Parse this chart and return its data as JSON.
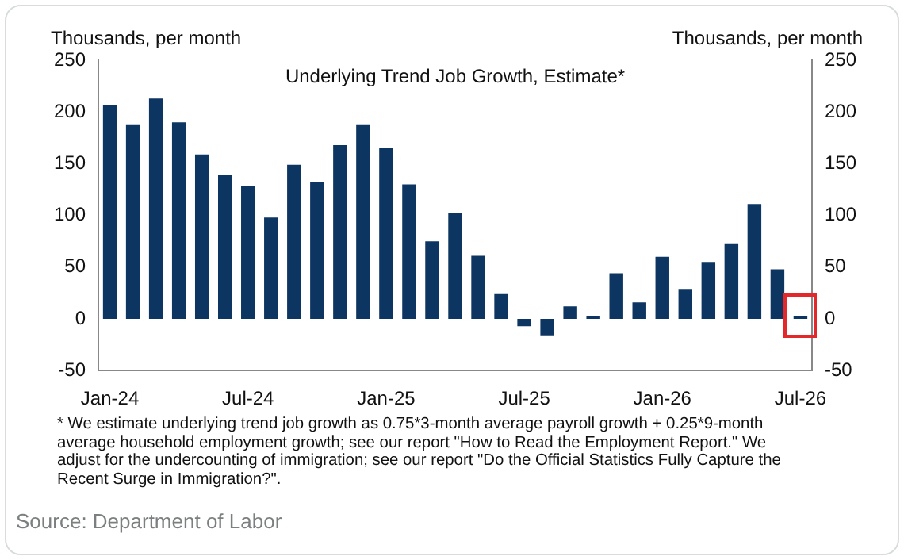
{
  "chart_data": {
    "type": "bar",
    "title": "Underlying Trend Job Growth, Estimate*",
    "ylabel": "Thousands, per month",
    "y2label": "Thousands, per month",
    "categories": [
      "Jan-24",
      null,
      null,
      null,
      null,
      null,
      "Jul-24",
      null,
      null,
      null,
      null,
      null,
      "Jan-25",
      null,
      null,
      null,
      null,
      null,
      "Jul-25",
      null,
      null,
      null,
      null,
      null,
      "Jan-26",
      null,
      null,
      null,
      null,
      null,
      "Jul-26"
    ],
    "series": [
      {
        "color": "#0c3561",
        "values": [
          207,
          188,
          213,
          190,
          159,
          139,
          128,
          98,
          149,
          132,
          168,
          188,
          165,
          130,
          75,
          102,
          61,
          24,
          -7,
          -16,
          12,
          3,
          44,
          16,
          60,
          29,
          55,
          73,
          111,
          48,
          3
        ]
      }
    ],
    "ylim": [
      -50,
      250
    ],
    "yticks": [
      -50,
      0,
      50,
      100,
      150,
      200,
      250
    ],
    "y2lim": [
      -50,
      250
    ],
    "y2ticks": [
      -50,
      0,
      50,
      100,
      150,
      200,
      250
    ],
    "grid": false,
    "annotations": [
      "* We estimate underlying trend job growth as 0.75*3-month average payroll growth + 0.25*9-month average household employment growth; see our report \"How to Read the Employment Report.\" We adjust for the undercounting of immigration; see our report \"Do the Official Statistics Fully Capture the Recent Surge in Immigration?\".",
      "Source: Department of Labor"
    ]
  }
}
